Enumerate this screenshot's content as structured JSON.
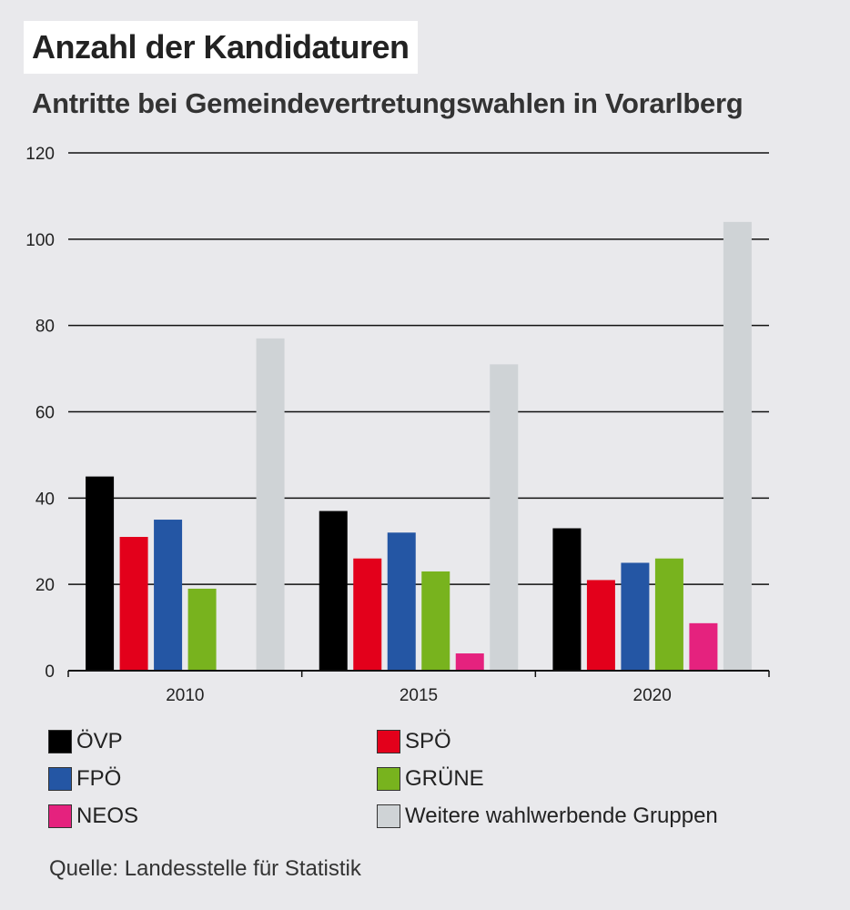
{
  "title": "Anzahl der Kandidaturen",
  "subtitle": "Antritte bei Gemeindevertretungswahlen in Vorarlberg",
  "source": "Quelle: Landesstelle für Statistik",
  "chart_data": {
    "type": "bar",
    "title": "Anzahl der Kandidaturen",
    "subtitle": "Antritte bei Gemeindevertretungswahlen in Vorarlberg",
    "xlabel": "",
    "ylabel": "",
    "categories": [
      "2010",
      "2015",
      "2020"
    ],
    "ylim": [
      0,
      120
    ],
    "yticks": [
      0,
      20,
      40,
      60,
      80,
      100,
      120
    ],
    "grid": true,
    "legend_position": "bottom",
    "series": [
      {
        "name": "ÖVP",
        "color": "#000000",
        "values": [
          45,
          37,
          33
        ]
      },
      {
        "name": "SPÖ",
        "color": "#e3001b",
        "values": [
          31,
          26,
          21
        ]
      },
      {
        "name": "FPÖ",
        "color": "#2456a4",
        "values": [
          35,
          32,
          25
        ]
      },
      {
        "name": "GRÜNE",
        "color": "#78b31e",
        "values": [
          19,
          23,
          26
        ]
      },
      {
        "name": "NEOS",
        "color": "#e5227e",
        "values": [
          null,
          4,
          11
        ]
      },
      {
        "name": "Weitere wahlwerbende Gruppen",
        "color": "#cfd3d6",
        "values": [
          77,
          71,
          104
        ]
      }
    ]
  }
}
